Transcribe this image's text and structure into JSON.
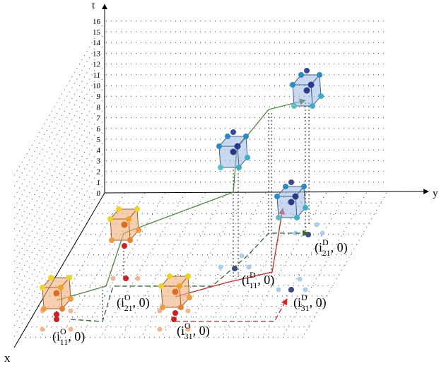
{
  "axes": {
    "t": "t",
    "y": "y",
    "x": "x"
  },
  "t_ticks": [
    0,
    1,
    2,
    3,
    4,
    5,
    6,
    7,
    8,
    9,
    10,
    11,
    12,
    13,
    14,
    15,
    16
  ],
  "labels": [
    {
      "text": "(i",
      "sup": "O",
      "sub": "11",
      "tail": ", 0)"
    },
    {
      "text": "(i",
      "sup": "O",
      "sub": "21",
      "tail": ", 0)"
    },
    {
      "text": "(i",
      "sup": "O",
      "sub": "31",
      "tail": ", 0)"
    },
    {
      "text": "(i",
      "sup": "D",
      "sub": "11",
      "tail": ", 0)"
    },
    {
      "text": "(i",
      "sup": "D",
      "sub": "21",
      "tail": ", 0)"
    },
    {
      "text": "(i",
      "sup": "D",
      "sub": "31",
      "tail": ", 0)"
    }
  ]
}
